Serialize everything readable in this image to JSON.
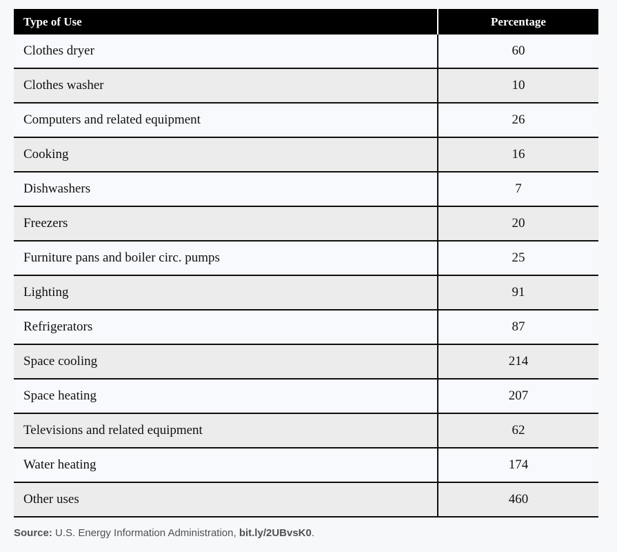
{
  "chart_data": {
    "type": "table",
    "columns": [
      "Type of Use",
      "Percentage"
    ],
    "rows": [
      [
        "Clothes dryer",
        60
      ],
      [
        "Clothes washer",
        10
      ],
      [
        "Computers and related equipment",
        26
      ],
      [
        "Cooking",
        16
      ],
      [
        "Dishwashers",
        7
      ],
      [
        "Freezers",
        20
      ],
      [
        "Furniture pans and boiler circ. pumps",
        25
      ],
      [
        "Lighting",
        91
      ],
      [
        "Refrigerators",
        87
      ],
      [
        "Space cooling",
        214
      ],
      [
        "Space heating",
        207
      ],
      [
        "Televisions and related equipment",
        62
      ],
      [
        "Water heating",
        174
      ],
      [
        "Other uses",
        460
      ]
    ],
    "layout": {
      "header_alignment": [
        "left",
        "center"
      ],
      "value_alignment": [
        "left",
        "center"
      ],
      "row_striping": "alternating"
    }
  },
  "source": {
    "label": "Source:",
    "text": " U.S. Energy Information Administration, ",
    "link": "bit.ly/2UBvsK0",
    "suffix": "."
  },
  "colors": {
    "page_bg": "#f7f8f9",
    "header_bg": "#000000",
    "header_text": "#ffffff",
    "row_light_bg": "#f8f9fc",
    "row_gray_bg": "#ececec",
    "border": "#0d0d0d",
    "source_text": "#4d5154"
  }
}
